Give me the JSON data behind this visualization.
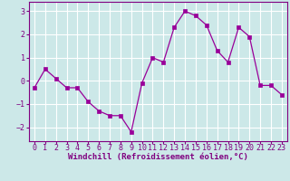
{
  "x": [
    0,
    1,
    2,
    3,
    4,
    5,
    6,
    7,
    8,
    9,
    10,
    11,
    12,
    13,
    14,
    15,
    16,
    17,
    18,
    19,
    20,
    21,
    22,
    23
  ],
  "y": [
    -0.3,
    0.5,
    0.1,
    -0.3,
    -0.3,
    -0.9,
    -1.3,
    -1.5,
    -1.5,
    -2.2,
    -0.1,
    1.0,
    0.8,
    2.3,
    3.0,
    2.8,
    2.4,
    1.3,
    0.8,
    2.3,
    1.9,
    -0.2,
    -0.2,
    -0.6
  ],
  "line_color": "#990099",
  "marker_color": "#990099",
  "bg_color": "#cce8e8",
  "grid_color": "#ffffff",
  "xlabel": "Windchill (Refroidissement éolien,°C)",
  "ylim": [
    -2.6,
    3.4
  ],
  "xlim": [
    -0.5,
    23.5
  ],
  "yticks": [
    -2,
    -1,
    0,
    1,
    2,
    3
  ],
  "xticks": [
    0,
    1,
    2,
    3,
    4,
    5,
    6,
    7,
    8,
    9,
    10,
    11,
    12,
    13,
    14,
    15,
    16,
    17,
    18,
    19,
    20,
    21,
    22,
    23
  ],
  "tick_color": "#800080",
  "label_color": "#800080",
  "label_fontsize": 6.5,
  "tick_fontsize": 6.0,
  "spine_color": "#800080"
}
